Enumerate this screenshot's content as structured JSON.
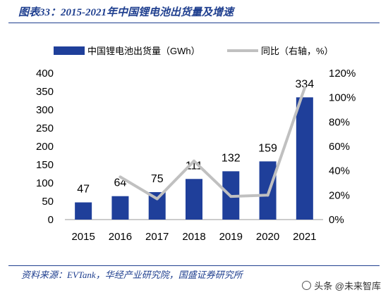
{
  "figure_title": "图表33：2015-2021年中国锂电池出货量及增速",
  "source_note": "资料来源：EVTank，华经产业研究院，国盛证券研究所",
  "watermark": "头条 @未来智库",
  "colors": {
    "bar": "#1f3f9a",
    "line": "#c0c0c0",
    "accent": "#1f3f8f",
    "text": "#000000"
  },
  "chart_data": {
    "type": "bar",
    "categories": [
      "2015",
      "2016",
      "2017",
      "2018",
      "2019",
      "2020",
      "2021"
    ],
    "series": [
      {
        "name": "中国锂电池出货量（GWh）",
        "type": "bar",
        "axis": "left",
        "values": [
          47,
          64,
          75,
          111,
          132,
          159,
          334
        ]
      },
      {
        "name": "同比（右轴，%）",
        "type": "line",
        "axis": "right",
        "values": [
          null,
          35,
          17,
          48,
          19,
          20,
          108
        ]
      }
    ],
    "data_labels": [
      "47",
      "64",
      "75",
      "111",
      "132",
      "159",
      "334"
    ],
    "y_left": {
      "min": 0,
      "max": 400,
      "ticks": [
        "0",
        "50",
        "100",
        "150",
        "200",
        "250",
        "300",
        "350",
        "400"
      ]
    },
    "y_right": {
      "min": 0,
      "max": 120,
      "ticks": [
        "0%",
        "20%",
        "40%",
        "60%",
        "80%",
        "100%",
        "120%"
      ]
    },
    "legend_position": "top",
    "grid": false
  }
}
